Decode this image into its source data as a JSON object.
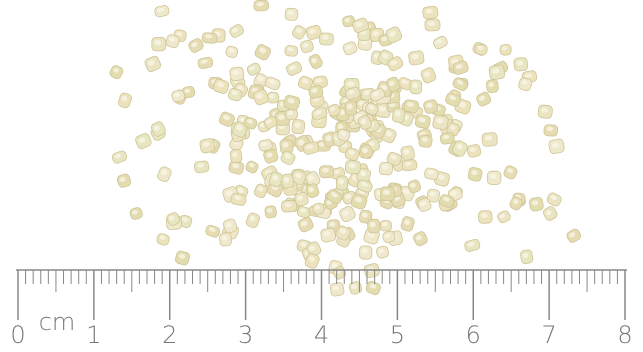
{
  "ruler": {
    "unit": "cm",
    "labels": [
      "0",
      "1",
      "2",
      "3",
      "4",
      "5",
      "6",
      "7",
      "8"
    ]
  }
}
